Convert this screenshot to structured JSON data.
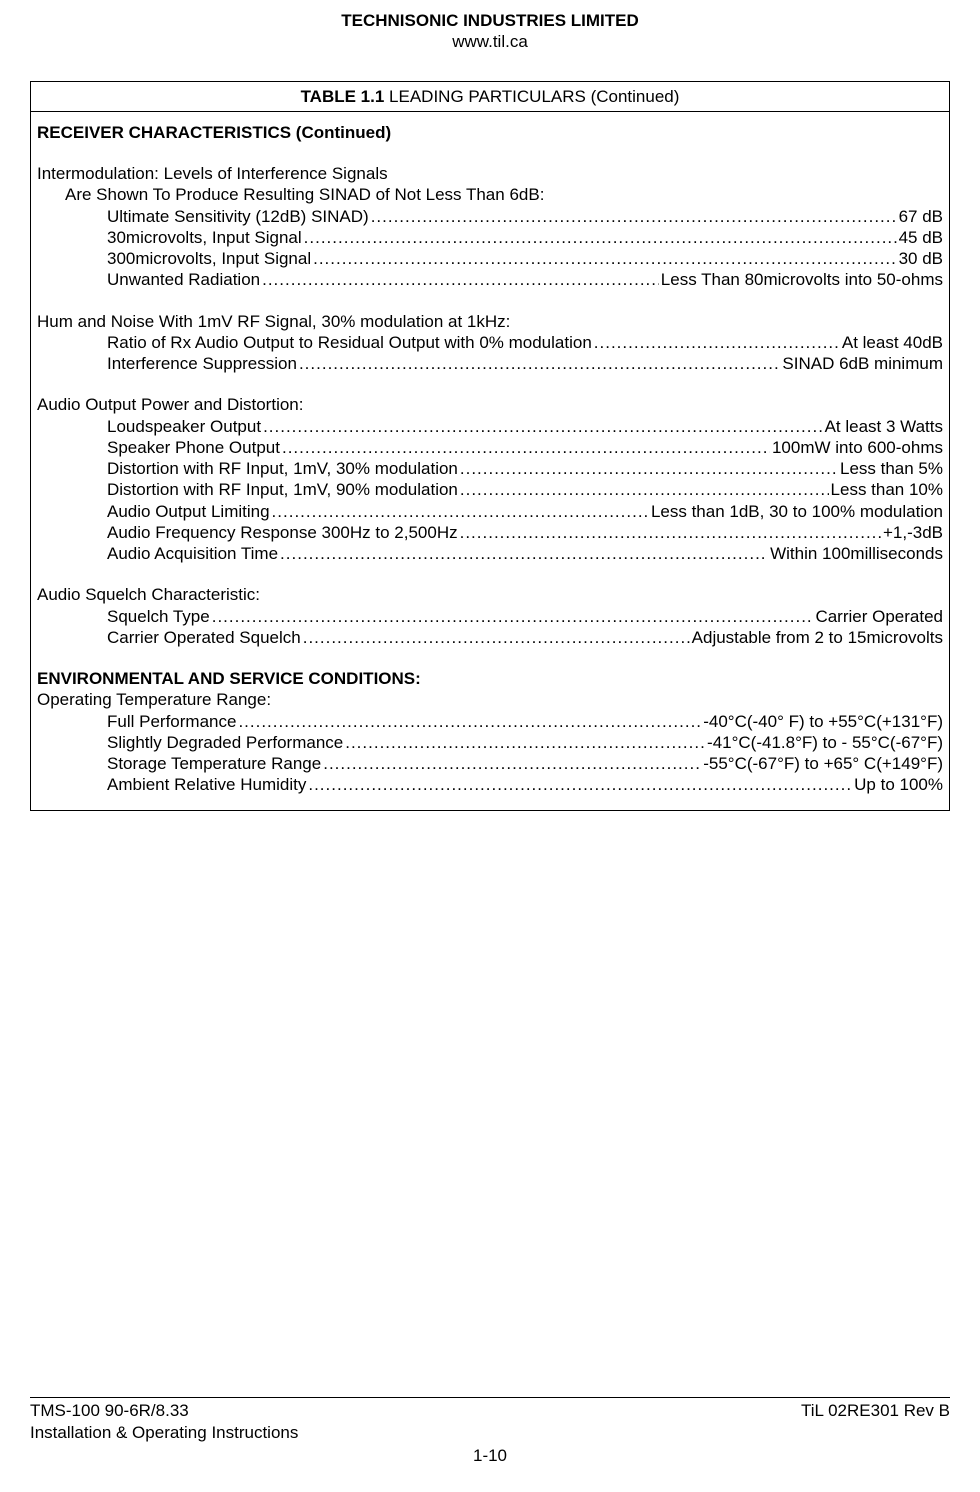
{
  "header": {
    "company": "TECHNISONIC INDUSTRIES LIMITED",
    "url": "www.til.ca"
  },
  "table": {
    "title_prefix": "TABLE 1.1",
    "title_rest": " LEADING PARTICULARS (Continued)"
  },
  "receiver_heading": "RECEIVER CHARACTERISTICS (Continued)",
  "intermod": {
    "title": "Intermodulation: Levels of Interference Signals",
    "subtitle": "Are Shown To Produce Resulting SINAD of Not Less Than 6dB:",
    "items": [
      {
        "label": "Ultimate Sensitivity (12dB) SINAD) ",
        "value": " 67 dB"
      },
      {
        "label": "30microvolts, Input Signal ",
        "value": " 45 dB"
      },
      {
        "label": "300microvolts, Input Signal ",
        "value": " 30 dB"
      },
      {
        "label": "Unwanted Radiation",
        "value": " Less Than 80microvolts into 50-ohms"
      }
    ]
  },
  "hum_noise": {
    "title": "Hum and Noise With 1mV RF Signal, 30% modulation at 1kHz:",
    "items": [
      {
        "label": "Ratio of Rx Audio Output to Residual Output with 0% modulation ",
        "value": " At least 40dB"
      },
      {
        "label": "Interference Suppression ",
        "value": " SINAD 6dB minimum"
      }
    ]
  },
  "audio_output": {
    "title": "Audio Output Power and Distortion:",
    "items": [
      {
        "label": "Loudspeaker Output ",
        "value": " At least 3 Watts"
      },
      {
        "label": "Speaker Phone Output ",
        "value": " 100mW into 600-ohms"
      },
      {
        "label": "Distortion with RF Input, 1mV, 30% modulation ",
        "value": " Less than 5%"
      },
      {
        "label": "Distortion with RF Input, 1mV, 90% modulation ",
        "value": " Less than 10%"
      },
      {
        "label": "Audio Output Limiting ",
        "value": " Less than 1dB, 30 to 100% modulation"
      },
      {
        "label": "Audio Frequency Response 300Hz to 2,500Hz ",
        "value": " +1,-3dB"
      },
      {
        "label": "Audio Acquisition Time ",
        "value": " Within 100milliseconds"
      }
    ]
  },
  "squelch": {
    "title": "Audio Squelch Characteristic:",
    "items": [
      {
        "label": "Squelch Type ",
        "value": " Carrier Operated"
      },
      {
        "label": "Carrier Operated Squelch ",
        "value": " Adjustable from 2 to 15microvolts"
      }
    ]
  },
  "env_heading": "ENVIRONMENTAL AND SERVICE CONDITIONS:",
  "env": {
    "title": "Operating Temperature Range:",
    "items": [
      {
        "label": "Full Performance ",
        "value": " -40°C(-40° F) to +55°C(+131°F)"
      },
      {
        "label": "Slightly Degraded Performance ",
        "value": " -41°C(-41.8°F) to - 55°C(-67°F)"
      },
      {
        "label": "Storage Temperature Range ",
        "value": " -55°C(-67°F) to +65° C(+149°F)"
      },
      {
        "label": "Ambient Relative Humidity ",
        "value": " Up to 100%"
      }
    ]
  },
  "footer": {
    "left1": "TMS-100 90-6R/8.33",
    "left2": "Installation & Operating Instructions",
    "right": "TiL 02RE301 Rev B",
    "page": "1-10"
  }
}
